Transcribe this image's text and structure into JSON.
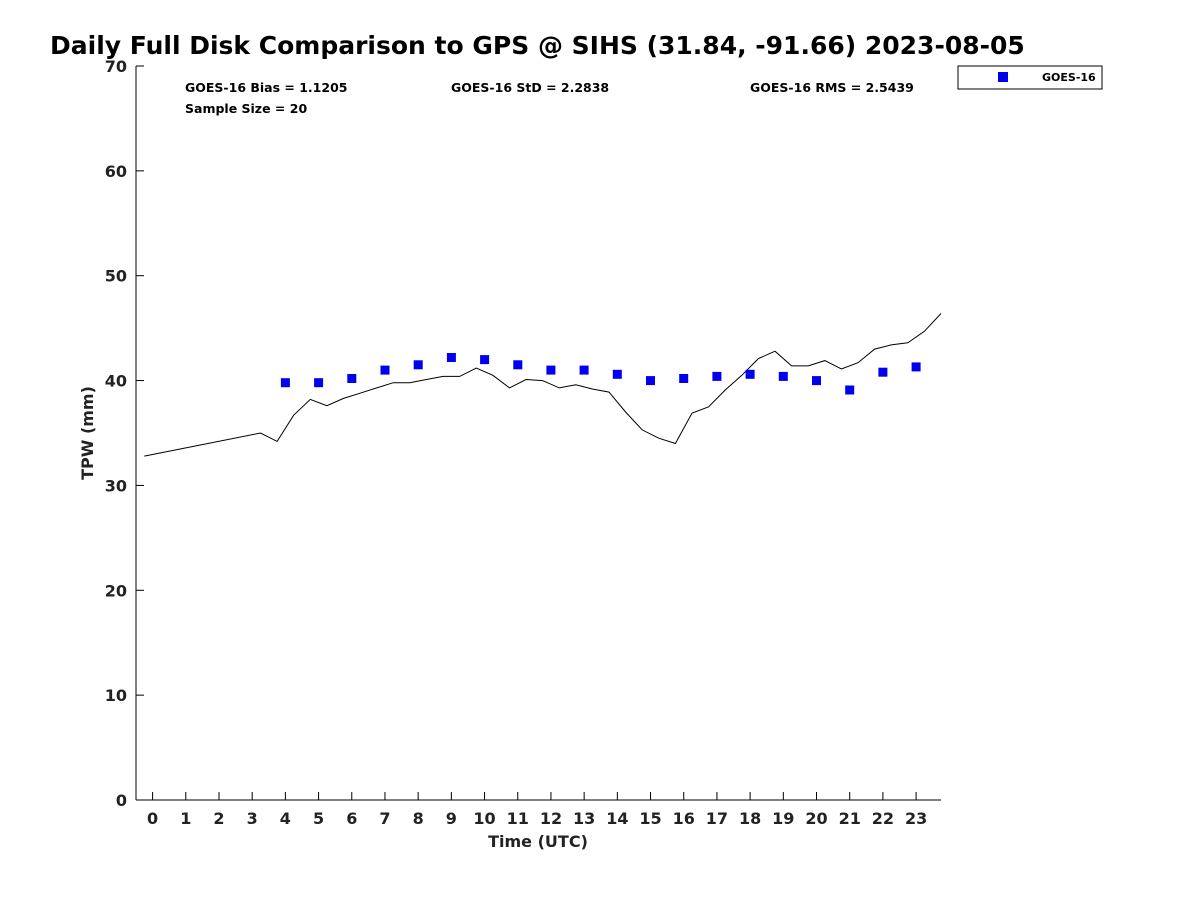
{
  "chart_data": {
    "type": "scatter",
    "title": "Daily Full Disk Comparison to GPS @ SIHS (31.84, -91.66) 2023-08-05",
    "xlabel": "Time (UTC)",
    "ylabel": "TPW (mm)",
    "xlim": [
      -0.5,
      23.75
    ],
    "ylim": [
      0,
      70
    ],
    "xticks": [
      0,
      1,
      2,
      3,
      4,
      5,
      6,
      7,
      8,
      9,
      10,
      11,
      12,
      13,
      14,
      15,
      16,
      17,
      18,
      19,
      20,
      21,
      22,
      23
    ],
    "yticks": [
      0,
      10,
      20,
      30,
      40,
      50,
      60,
      70
    ],
    "grid": false,
    "legend": {
      "placement": "outside-top-right",
      "entries": [
        "GOES-16"
      ]
    },
    "stats": {
      "bias": "GOES-16 Bias = 1.1205",
      "std": "GOES-16 StD = 2.2838",
      "rms": "GOES-16 RMS = 2.5439",
      "sample_size": "Sample Size = 20"
    },
    "series": [
      {
        "name": "GOES-16",
        "kind": "scatter",
        "marker": "square",
        "color": "#0000ee",
        "x": [
          4,
          5,
          6,
          7,
          8,
          9,
          10,
          11,
          12,
          13,
          14,
          15,
          16,
          17,
          18,
          19,
          20,
          21,
          22,
          23
        ],
        "y": [
          39.8,
          39.8,
          40.2,
          41.0,
          41.5,
          42.2,
          42.0,
          41.5,
          41.0,
          41.0,
          40.6,
          40.0,
          40.2,
          40.4,
          40.6,
          40.4,
          40.0,
          39.1,
          40.8,
          41.3
        ]
      },
      {
        "kind": "line",
        "color": "#000000",
        "x": [
          -0.25,
          3.25,
          3.75,
          4.25,
          4.75,
          5.25,
          5.75,
          6.25,
          6.75,
          7.25,
          7.75,
          8.25,
          8.75,
          9.25,
          9.75,
          10.25,
          10.75,
          11.25,
          11.75,
          12.25,
          12.75,
          13.25,
          13.75,
          14.25,
          14.75,
          15.25,
          15.75,
          16.25,
          16.75,
          17.25,
          17.75,
          18.25,
          18.75,
          19.25,
          19.75,
          20.25,
          20.75,
          21.25,
          21.75,
          22.25,
          22.75,
          23.25,
          23.75
        ],
        "y": [
          32.8,
          35.0,
          34.2,
          36.7,
          38.2,
          37.6,
          38.3,
          38.8,
          39.3,
          39.8,
          39.8,
          40.1,
          40.4,
          40.4,
          41.2,
          40.5,
          39.3,
          40.1,
          40.0,
          39.3,
          39.6,
          39.2,
          38.9,
          37.0,
          35.3,
          34.5,
          34.0,
          36.9,
          37.5,
          39.1,
          40.5,
          42.1,
          42.8,
          41.4,
          41.4,
          41.9,
          41.1,
          41.7,
          43.0,
          43.4,
          43.6,
          44.7,
          46.4
        ]
      }
    ]
  }
}
